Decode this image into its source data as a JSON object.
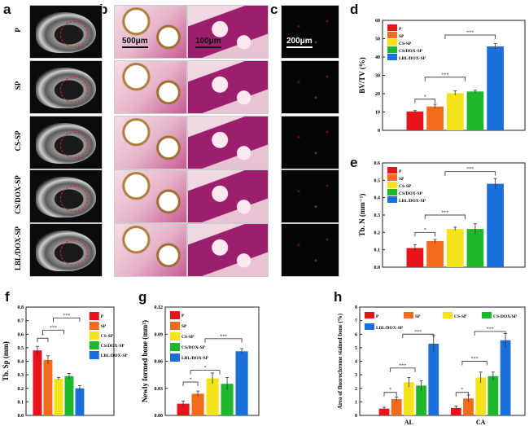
{
  "panels": {
    "a": "a",
    "b": "b",
    "c": "c",
    "d": "d",
    "e": "e",
    "f": "f",
    "g": "g",
    "h": "h"
  },
  "row_labels": [
    "P",
    "SP",
    "CS-SP",
    "CS/DOX-SP",
    "LBL/DOX-SP"
  ],
  "scale_bars": {
    "b_low": "500μm",
    "b_high": "100μm",
    "c": "200μm"
  },
  "c_header": {
    "ca": "CA",
    "sep": "/",
    "al": "AL"
  },
  "colors": {
    "P": "#e8141b",
    "SP": "#f26b1d",
    "CS-SP": "#f5e31a",
    "CS/DOX-SP": "#1db82b",
    "LBL/DOX-SP": "#1a6fd8"
  },
  "chart_data": [
    {
      "panel": "d",
      "type": "bar",
      "ylabel": "BV/TV (%)",
      "ylim": [
        0,
        60
      ],
      "yticks": [
        "0",
        "10",
        "20",
        "30",
        "40",
        "50",
        "60"
      ],
      "categories": [
        ""
      ],
      "legend": "top-left",
      "series": [
        {
          "name": "P",
          "values": [
            10.3
          ],
          "errors": [
            0.5
          ]
        },
        {
          "name": "SP",
          "values": [
            13.0
          ],
          "errors": [
            1.2
          ]
        },
        {
          "name": "CS-SP",
          "values": [
            20.3
          ],
          "errors": [
            1.2
          ]
        },
        {
          "name": "CS/DOX-SP",
          "values": [
            21.2
          ],
          "errors": [
            0.7
          ]
        },
        {
          "name": "LBL/DOX-SP",
          "values": [
            45.8
          ],
          "errors": [
            1.5
          ]
        }
      ],
      "annotations": [
        {
          "a": [
            0,
            0
          ],
          "b": [
            1,
            1
          ],
          "level": 17,
          "label": "*"
        },
        {
          "a": [
            0,
            1
          ],
          "b": [
            2,
            3
          ],
          "level": 29,
          "label": "***"
        },
        {
          "a": [
            0,
            3
          ],
          "b": [
            4,
            4
          ],
          "level": 52,
          "label": "***"
        }
      ]
    },
    {
      "panel": "e",
      "type": "bar",
      "ylabel": "Tb. N (mm⁻¹)",
      "ylim": [
        0,
        0.6
      ],
      "yticks": [
        "0.0",
        "0.1",
        "0.2",
        "0.3",
        "0.4",
        "0.5",
        "0.6"
      ],
      "categories": [
        ""
      ],
      "legend": "top-left",
      "series": [
        {
          "name": "P",
          "values": [
            0.11
          ],
          "errors": [
            0.02
          ]
        },
        {
          "name": "SP",
          "values": [
            0.15
          ],
          "errors": [
            0.01
          ]
        },
        {
          "name": "CS-SP",
          "values": [
            0.22
          ],
          "errors": [
            0.01
          ]
        },
        {
          "name": "CS/DOX-SP",
          "values": [
            0.22
          ],
          "errors": [
            0.03
          ]
        },
        {
          "name": "LBL/DOX-SP",
          "values": [
            0.48
          ],
          "errors": [
            0.03
          ]
        }
      ],
      "annotations": [
        {
          "a": [
            0,
            0
          ],
          "b": [
            1,
            1
          ],
          "level": 0.2,
          "label": "*"
        },
        {
          "a": [
            0,
            1
          ],
          "b": [
            2,
            3
          ],
          "level": 0.3,
          "label": "***"
        },
        {
          "a": [
            0,
            3
          ],
          "b": [
            4,
            4
          ],
          "level": 0.55,
          "label": "***"
        }
      ]
    },
    {
      "panel": "f",
      "type": "bar",
      "ylabel": "Tb. Sp (mm)",
      "ylim": [
        0,
        0.8
      ],
      "yticks": [
        "0.0",
        "0.1",
        "0.2",
        "0.3",
        "0.4",
        "0.5",
        "0.6",
        "0.7",
        "0.8"
      ],
      "categories": [
        ""
      ],
      "legend": "top-right",
      "series": [
        {
          "name": "P",
          "values": [
            0.48
          ],
          "errors": [
            0.03
          ]
        },
        {
          "name": "SP",
          "values": [
            0.41
          ],
          "errors": [
            0.03
          ]
        },
        {
          "name": "CS-SP",
          "values": [
            0.27
          ],
          "errors": [
            0.01
          ]
        },
        {
          "name": "CS/DOX-SP",
          "values": [
            0.29
          ],
          "errors": [
            0.02
          ]
        },
        {
          "name": "LBL/DOX-SP",
          "values": [
            0.2
          ],
          "errors": [
            0.02
          ]
        }
      ],
      "annotations": [
        {
          "a": [
            0,
            0
          ],
          "b": [
            1,
            1
          ],
          "level": 0.57,
          "label": "*"
        },
        {
          "a": [
            0,
            1
          ],
          "b": [
            2,
            3
          ],
          "level": 0.63,
          "label": "***"
        },
        {
          "a": [
            0,
            3
          ],
          "b": [
            4,
            4
          ],
          "level": 0.72,
          "label": "***"
        }
      ]
    },
    {
      "panel": "g",
      "type": "bar",
      "ylabel": "Newly formed bone (mm²)",
      "ylim": [
        0,
        0.12
      ],
      "yticks": [
        "0.00",
        "0.03",
        "0.06",
        "0.09",
        "0.12"
      ],
      "categories": [
        ""
      ],
      "legend": "top-left",
      "series": [
        {
          "name": "P",
          "values": [
            0.013
          ],
          "errors": [
            0.003
          ]
        },
        {
          "name": "SP",
          "values": [
            0.024
          ],
          "errors": [
            0.003
          ]
        },
        {
          "name": "CS-SP",
          "values": [
            0.041
          ],
          "errors": [
            0.006
          ]
        },
        {
          "name": "CS/DOX-SP",
          "values": [
            0.035
          ],
          "errors": [
            0.007
          ]
        },
        {
          "name": "LBL/DOX-SP",
          "values": [
            0.071
          ],
          "errors": [
            0.003
          ]
        }
      ],
      "annotations": [
        {
          "a": [
            0,
            0
          ],
          "b": [
            1,
            1
          ],
          "level": 0.037,
          "label": "*"
        },
        {
          "a": [
            0,
            1
          ],
          "b": [
            2,
            3
          ],
          "level": 0.05,
          "label": "*"
        },
        {
          "a": [
            0,
            3
          ],
          "b": [
            4,
            4
          ],
          "level": 0.085,
          "label": "***"
        }
      ]
    },
    {
      "panel": "h",
      "type": "bar",
      "ylabel": "Area of fluorochrome stained bone (%)",
      "ylim": [
        0,
        8
      ],
      "yticks": [
        "0",
        "1",
        "2",
        "3",
        "4",
        "5",
        "6",
        "7",
        "8"
      ],
      "categories": [
        "AL",
        "CA"
      ],
      "legend": "top",
      "series": [
        {
          "name": "P",
          "values": [
            0.5,
            0.55
          ],
          "errors": [
            0.1,
            0.15
          ]
        },
        {
          "name": "SP",
          "values": [
            1.2,
            1.25
          ],
          "errors": [
            0.15,
            0.25
          ]
        },
        {
          "name": "CS-SP",
          "values": [
            2.45,
            2.8
          ],
          "errors": [
            0.35,
            0.4
          ]
        },
        {
          "name": "CS-DOX/SP",
          "values": [
            2.2,
            2.9
          ],
          "errors": [
            0.35,
            0.3
          ]
        },
        {
          "name": "LBL/DOX-SP",
          "values": [
            5.3,
            5.55
          ],
          "errors": [
            0.6,
            0.5
          ]
        }
      ],
      "annotations": [
        {
          "cat": 0,
          "a": [
            0,
            0
          ],
          "b": [
            1,
            1
          ],
          "level": 1.7,
          "label": "*"
        },
        {
          "cat": 0,
          "a": [
            0,
            1
          ],
          "b": [
            2,
            3
          ],
          "level": 3.5,
          "label": "***"
        },
        {
          "cat": 0,
          "a": [
            0,
            3
          ],
          "b": [
            4,
            4
          ],
          "level": 6.0,
          "label": "***"
        },
        {
          "cat": 1,
          "a": [
            0,
            0
          ],
          "b": [
            1,
            1
          ],
          "level": 1.7,
          "label": "*"
        },
        {
          "cat": 1,
          "a": [
            0,
            1
          ],
          "b": [
            2,
            3
          ],
          "level": 4.0,
          "label": "***"
        },
        {
          "cat": 1,
          "a": [
            0,
            3
          ],
          "b": [
            4,
            4
          ],
          "level": 6.2,
          "label": "***"
        }
      ]
    }
  ]
}
